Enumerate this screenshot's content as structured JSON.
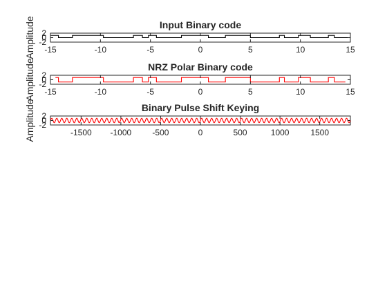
{
  "chart_data": [
    {
      "type": "line",
      "title": "Input Binary code",
      "xlabel": "",
      "ylabel": "Amplitude",
      "xlim": [
        -15,
        15
      ],
      "ylim": [
        -2,
        2
      ],
      "xticks": [
        -15,
        -10,
        -5,
        0,
        5,
        10,
        15
      ],
      "yticks": [
        -2,
        0,
        2
      ],
      "color": "#000000",
      "series": [
        {
          "x": [
            -15,
            -14.2,
            -14.2,
            -12.8,
            -12.8,
            -9.7,
            -9.7,
            -6.7,
            -6.7,
            -5.8,
            -5.8,
            -5.2,
            -5.2,
            -4.4,
            -4.4,
            -1.9,
            -1.9,
            0.8,
            0.8,
            2.5,
            2.5,
            5.0,
            5.0,
            7.9,
            7.9,
            8.4,
            8.4,
            9.8,
            9.8,
            11.0,
            11.0,
            12.8,
            12.8,
            13.4,
            13.4,
            15
          ],
          "y": [
            1,
            1,
            0,
            0,
            1,
            1,
            0,
            0,
            1,
            1,
            0,
            0,
            1,
            1,
            0,
            0,
            1,
            1,
            0,
            0,
            1,
            1,
            0,
            0,
            1,
            1,
            0,
            0,
            1,
            1,
            0,
            0,
            1,
            1,
            0,
            0
          ]
        }
      ]
    },
    {
      "type": "line",
      "title": "NRZ Polar Binary code",
      "xlabel": "",
      "ylabel": "Amplitude",
      "xlim": [
        -15,
        15
      ],
      "ylim": [
        -2,
        2
      ],
      "xticks": [
        -15,
        -10,
        -5,
        0,
        5,
        10,
        15
      ],
      "yticks": [
        -2,
        0,
        2
      ],
      "color": "#ff0000",
      "series": [
        {
          "x": [
            -14.5,
            -14.2,
            -14.2,
            -12.8,
            -12.8,
            -9.7,
            -9.7,
            -6.7,
            -6.7,
            -5.8,
            -5.8,
            -5.2,
            -5.2,
            -4.4,
            -4.4,
            -1.9,
            -1.9,
            0.8,
            0.8,
            2.5,
            2.5,
            5.0,
            5.0,
            7.9,
            7.9,
            8.4,
            8.4,
            9.8,
            9.8,
            11.0,
            11.0,
            12.8,
            12.8,
            13.4,
            13.4,
            14.5
          ],
          "y": [
            1,
            1,
            -1,
            -1,
            1,
            1,
            -1,
            -1,
            1,
            1,
            -1,
            -1,
            1,
            1,
            -1,
            -1,
            1,
            1,
            -1,
            -1,
            1,
            1,
            -1,
            -1,
            1,
            1,
            -1,
            -1,
            1,
            1,
            -1,
            -1,
            1,
            1,
            -1,
            -1
          ]
        }
      ]
    },
    {
      "type": "line",
      "title": "Binary Pulse Shift Keying",
      "xlabel": "",
      "ylabel": "Amplitude",
      "xlim": [
        -1885,
        1885
      ],
      "ylim": [
        -2,
        2
      ],
      "xticks": [
        -1500,
        -1000,
        -500,
        0,
        500,
        1000,
        1500
      ],
      "yticks": [
        -2,
        0,
        2
      ],
      "color": "#ff0000",
      "series": [
        {
          "function": "sine",
          "amplitude": 1,
          "period": 62.8,
          "x_range": [
            -1885,
            1885
          ]
        }
      ]
    }
  ]
}
